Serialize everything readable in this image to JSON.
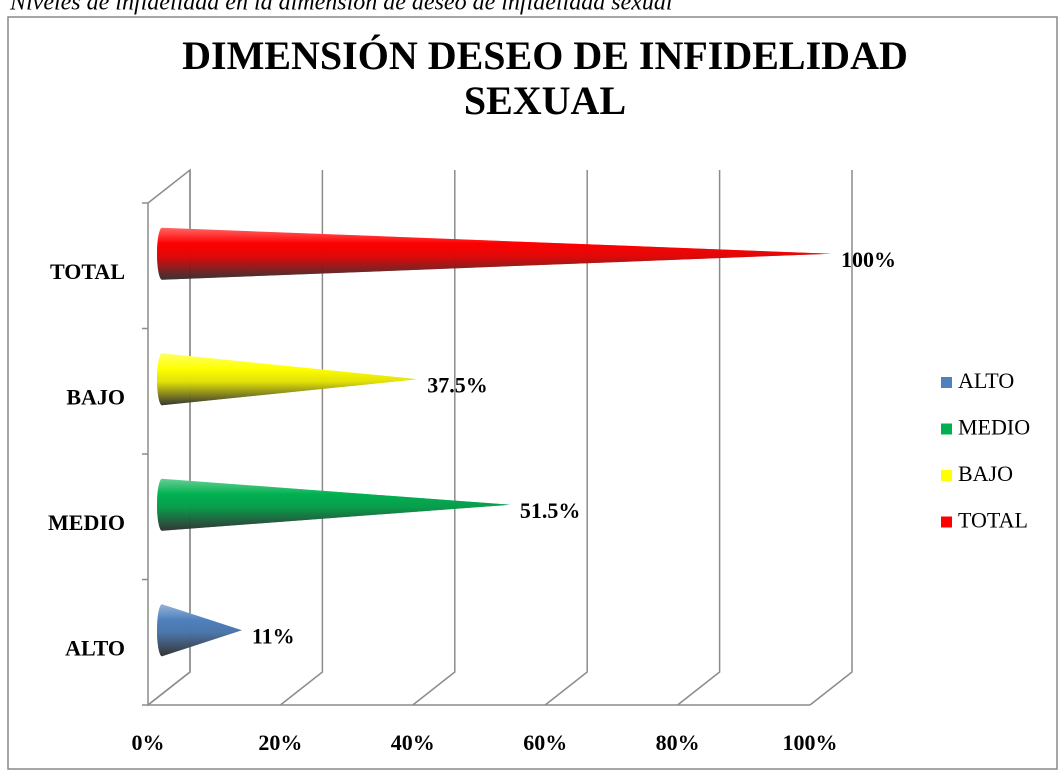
{
  "caption": "Niveles de infidelidad en la dimensión de deseo de infidelidad sexual",
  "chart_data": {
    "type": "cone-bar",
    "title": [
      "DIMENSIÓN DESEO DE INFIDELIDAD",
      "SEXUAL"
    ],
    "categories": [
      "ALTO",
      "MEDIO",
      "BAJO",
      "TOTAL"
    ],
    "values": [
      11,
      51.5,
      37.5,
      100
    ],
    "value_labels": [
      "11%",
      "51.5%",
      "37.5%",
      "100%"
    ],
    "colors": [
      "#4f81bd",
      "#00b050",
      "#ffff00",
      "#ff0000"
    ],
    "xlim": [
      0,
      100
    ],
    "xticks": [
      {
        "value": 0,
        "label": "0%"
      },
      {
        "value": 20,
        "label": "20%"
      },
      {
        "value": 40,
        "label": "40%"
      },
      {
        "value": 60,
        "label": "60%"
      },
      {
        "value": 80,
        "label": "80%"
      },
      {
        "value": 100,
        "label": "100%"
      }
    ],
    "grid": true,
    "legend": "right"
  }
}
